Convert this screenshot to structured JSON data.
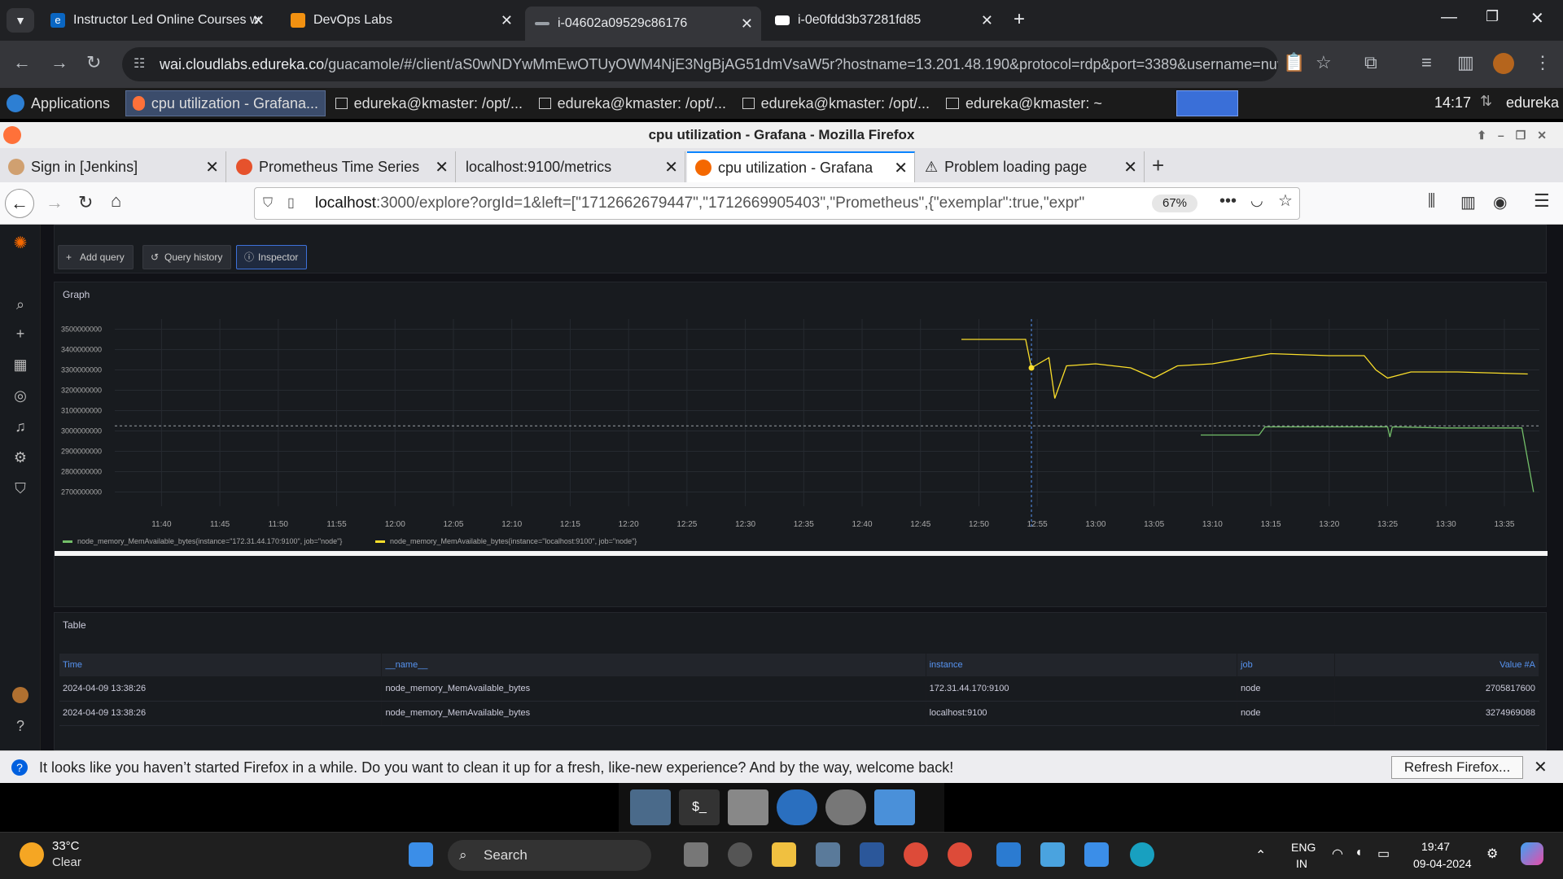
{
  "chrome": {
    "tabs": [
      {
        "title": "Instructor Led Online Courses w"
      },
      {
        "title": "DevOps Labs"
      },
      {
        "title": "i-04602a09529c86176"
      },
      {
        "title": "i-0e0fdd3b37281fd85"
      }
    ],
    "url_host": "wai.cloudlabs.edureka.co",
    "url_rest": "/guacamole/#/client/aS0wNDYwMmEwOTUyOWM4NjE3NgBjAG51dmVsaW5r?hostname=13.201.48.190&protocol=rdp&port=3389&username=nuveu..."
  },
  "xfce": {
    "applications_label": "Applications",
    "tasks": [
      {
        "label": "cpu utilization - Grafana..."
      },
      {
        "label": "edureka@kmaster: /opt/..."
      },
      {
        "label": "edureka@kmaster: /opt/..."
      },
      {
        "label": "edureka@kmaster: /opt/..."
      },
      {
        "label": "edureka@kmaster: ~"
      }
    ],
    "clock": "14:17",
    "user": "edureka"
  },
  "firefox": {
    "window_title": "cpu utilization - Grafana - Mozilla Firefox",
    "tabs": [
      {
        "title": "Sign in [Jenkins]"
      },
      {
        "title": "Prometheus Time Series"
      },
      {
        "title": "localhost:9100/metrics"
      },
      {
        "title": "cpu utilization - Grafana"
      },
      {
        "title": "Problem loading page"
      }
    ],
    "url_host": "localhost",
    "url_rest": ":3000/explore?orgId=1&left=[\"1712662679447\",\"1712669905403\",\"Prometheus\",{\"exemplar\":true,\"expr\"",
    "zoom": "67%",
    "notification": "It looks like you haven’t started Firefox in a while. Do you want to clean it up for a fresh, like-new experience? And by the way, welcome back!",
    "refresh_label": "Refresh Firefox..."
  },
  "grafana": {
    "buttons": {
      "add_query": "Add query",
      "query_history": "Query history",
      "inspector": "Inspector"
    },
    "graph_title": "Graph",
    "table_title": "Table",
    "table": {
      "columns": [
        "Time",
        "__name__",
        "instance",
        "job",
        "Value #A"
      ],
      "rows": [
        [
          "2024-04-09 13:38:26",
          "node_memory_MemAvailable_bytes",
          "172.31.44.170:9100",
          "node",
          "2705817600"
        ],
        [
          "2024-04-09 13:38:26",
          "node_memory_MemAvailable_bytes",
          "localhost:9100",
          "node",
          "3274969088"
        ]
      ]
    }
  },
  "chart_data": {
    "type": "line",
    "title": "Graph",
    "xlabel": "",
    "ylabel": "",
    "ylim": [
      2650000000,
      3550000000
    ],
    "y_ticks": [
      "3500000000",
      "3400000000",
      "3300000000",
      "3200000000",
      "3100000000",
      "3000000000",
      "2900000000",
      "2800000000",
      "2700000000"
    ],
    "x_ticks": [
      "11:40",
      "11:45",
      "11:50",
      "11:55",
      "12:00",
      "12:05",
      "12:10",
      "12:15",
      "12:20",
      "12:25",
      "12:30",
      "12:35",
      "12:40",
      "12:45",
      "12:50",
      "12:55",
      "13:00",
      "13:05",
      "13:10",
      "13:15",
      "13:20",
      "13:25",
      "13:30",
      "13:35"
    ],
    "grid": true,
    "legend_position": "bottom-left",
    "series": [
      {
        "name": "node_memory_MemAvailable_bytes{instance=\"172.31.44.170:9100\", job=\"node\"}",
        "color": "#73bf69",
        "points": [
          [
            "13:09",
            2980000000
          ],
          [
            "13:14",
            2980000000
          ],
          [
            "13:14.5",
            3020000000
          ],
          [
            "13:20",
            3020000000
          ],
          [
            "13:25",
            3020000000
          ],
          [
            "13:25.2",
            2970000000
          ],
          [
            "13:25.4",
            3020000000
          ],
          [
            "13:30",
            3015000000
          ],
          [
            "13:36.5",
            3015000000
          ],
          [
            "13:37.5",
            2700000000
          ]
        ]
      },
      {
        "name": "node_memory_MemAvailable_bytes{instance=\"localhost:9100\", job=\"node\"}",
        "color": "#fade2a",
        "points": [
          [
            "12:48.5",
            3450000000
          ],
          [
            "12:54",
            3450000000
          ],
          [
            "12:54.5",
            3310000000
          ],
          [
            "12:56",
            3360000000
          ],
          [
            "12:56.5",
            3160000000
          ],
          [
            "12:57.5",
            3320000000
          ],
          [
            "13:00",
            3330000000
          ],
          [
            "13:03",
            3310000000
          ],
          [
            "13:05",
            3260000000
          ],
          [
            "13:07",
            3320000000
          ],
          [
            "13:10",
            3330000000
          ],
          [
            "13:15",
            3380000000
          ],
          [
            "13:20",
            3370000000
          ],
          [
            "13:23",
            3370000000
          ],
          [
            "13:24",
            3300000000
          ],
          [
            "13:25",
            3260000000
          ],
          [
            "13:27",
            3290000000
          ],
          [
            "13:31",
            3290000000
          ],
          [
            "13:37",
            3280000000
          ]
        ]
      }
    ]
  },
  "windows": {
    "weather_temp": "33°C",
    "weather_desc": "Clear",
    "search_label": "Search",
    "lang": "ENG",
    "region": "IN",
    "time": "19:47",
    "date": "09-04-2024"
  }
}
